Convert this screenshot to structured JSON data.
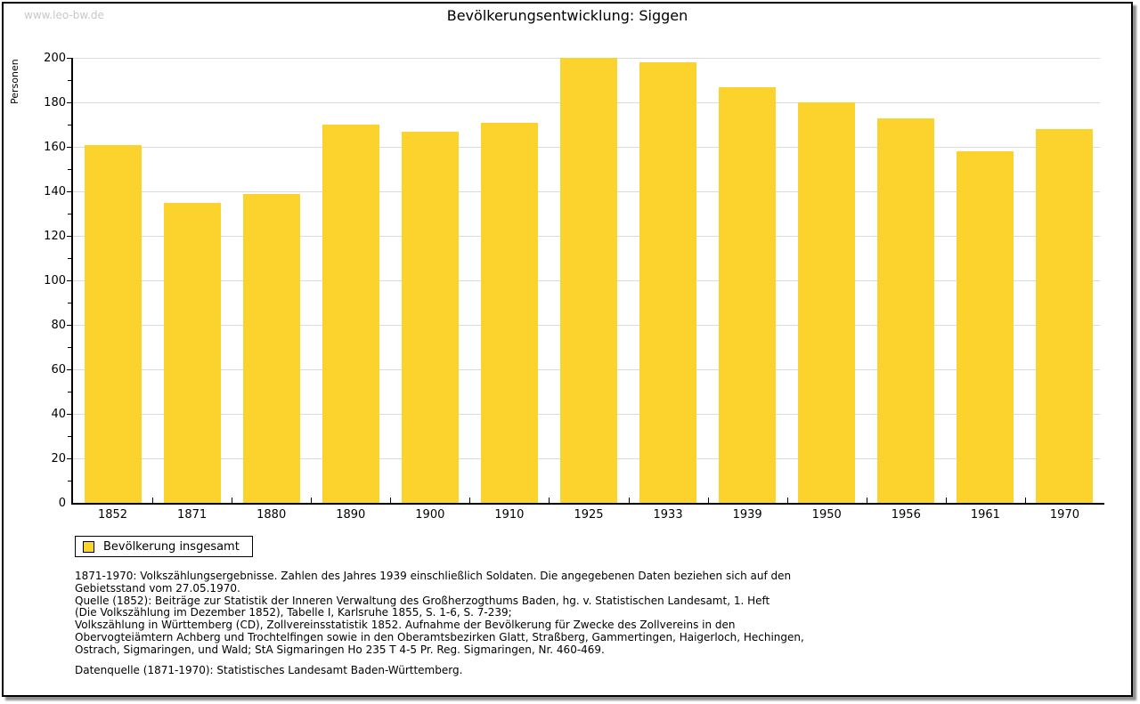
{
  "watermark": "www.leo-bw.de",
  "header": {
    "title": "Bevölkerungsentwicklung: Siggen"
  },
  "chart_data": {
    "type": "bar",
    "title": "Bevölkerungsentwicklung: Siggen",
    "ylabel": "Personen",
    "xlabel": "",
    "categories": [
      "1852",
      "1871",
      "1880",
      "1890",
      "1900",
      "1910",
      "1925",
      "1933",
      "1939",
      "1950",
      "1956",
      "1961",
      "1970"
    ],
    "values": [
      161,
      135,
      139,
      170,
      167,
      171,
      200,
      198,
      187,
      180,
      173,
      158,
      168
    ],
    "series_name": "Bevölkerung insgesamt",
    "ylim": [
      0,
      200
    ],
    "ytick_step": 20,
    "yminor_step": 10,
    "grid": true,
    "legend_position": "bottom-left",
    "bar_color": "#FCD32D"
  },
  "legend": {
    "label": "Bevölkerung insgesamt"
  },
  "footnotes": [
    "1871-1970: Volkszählungsergebnisse. Zahlen des Jahres 1939 einschließlich Soldaten. Die angegebenen Daten beziehen sich auf den",
    "Gebietsstand vom 27.05.1970.",
    "Quelle (1852): Beiträge zur Statistik der Inneren Verwaltung des Großherzogthums Baden, hg. v. Statistischen Landesamt, 1. Heft",
    "(Die Volkszählung im Dezember 1852), Tabelle I, Karlsruhe 1855, S. 1-6, S. 7-239;",
    "Volkszählung in Württemberg (CD), Zollvereinsstatistik 1852. Aufnahme der Bevölkerung für Zwecke des Zollvereins in den",
    "Obervogteiämtern Achberg und Trochtelfingen sowie in den Oberamtsbezirken Glatt, Straßberg, Gammertingen, Haigerloch, Hechingen,",
    "Ostrach, Sigmaringen, und Wald; StA Sigmaringen Ho 235 T 4-5 Pr. Reg. Sigmaringen, Nr. 460-469."
  ],
  "datasource": "Datenquelle (1871-1970): Statistisches Landesamt Baden-Württemberg.",
  "colors": {
    "bar": "#FCD32D",
    "grid": "#DBDBDB",
    "axis": "#000000",
    "watermark": "#C8C8C8"
  }
}
